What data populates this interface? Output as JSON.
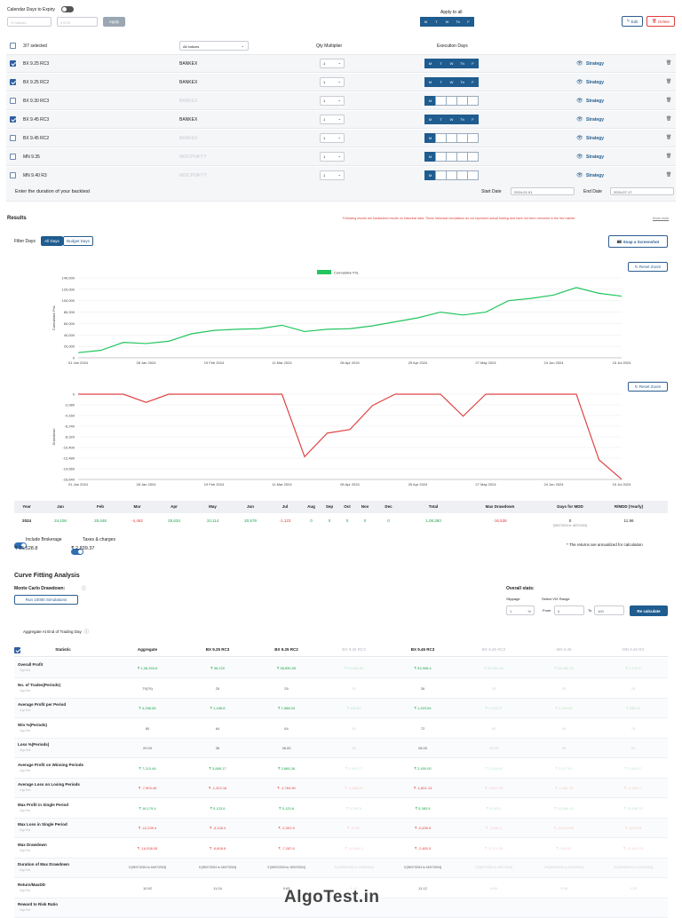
{
  "top": {
    "calendar_days_label": "Calendar Days to Expiry",
    "select1": "% Indices",
    "select2": "0 DTE",
    "apply_label": "Apply",
    "apply_to_all_label": "Apply to all",
    "days": [
      "M",
      "T",
      "W",
      "Th",
      "F"
    ],
    "edit_label": "Edit",
    "delete_label": "Delete"
  },
  "header_row": {
    "selected": "3/7 selected",
    "indices": "All Indices",
    "qty_mult": "Qty Multiplier",
    "exec_days": "Execution Days"
  },
  "legs": [
    {
      "name": "BX 9.25 RC3",
      "index": "BANKEX",
      "qty": "1",
      "checked": true,
      "active": true,
      "days": [
        1,
        1,
        1,
        1,
        1
      ]
    },
    {
      "name": "BX 9.25 RC2",
      "index": "BANKEX",
      "qty": "1",
      "checked": true,
      "active": true,
      "days": [
        1,
        1,
        1,
        1,
        1
      ]
    },
    {
      "name": "BX 9.30 RC3",
      "index": "BANKEX",
      "qty": "1",
      "checked": false,
      "active": false,
      "days": [
        1,
        0,
        0,
        0,
        0
      ]
    },
    {
      "name": "BX 9.45 RC3",
      "index": "BANKEX",
      "qty": "1",
      "checked": true,
      "active": true,
      "days": [
        1,
        1,
        1,
        1,
        1
      ]
    },
    {
      "name": "BX 9.45 RC2",
      "index": "BANKEX",
      "qty": "1",
      "checked": false,
      "active": false,
      "days": [
        1,
        0,
        0,
        0,
        0
      ]
    },
    {
      "name": "MN 9.35",
      "index": "MIDCPNIFTY",
      "qty": "1",
      "checked": false,
      "active": false,
      "days": [
        1,
        0,
        0,
        0,
        0
      ]
    },
    {
      "name": "MN 9.40 R3",
      "index": "MIDCPNIFTY",
      "qty": "1",
      "checked": false,
      "active": false,
      "days": [
        1,
        0,
        0,
        0,
        0
      ]
    }
  ],
  "strategy_label": "Strategy",
  "duration": {
    "label": "Enter the duration of your backtest",
    "start_label": "Start Date",
    "start": "2024-01-01",
    "end_label": "End Date",
    "end": "2024-07-17"
  },
  "results": {
    "title": "Results",
    "disclaimer": "Following results are backtested results on historical data. These historical simulations do not represent actual trading and have not been executed in the live market.",
    "know_more": "Know more",
    "filter_label": "Filter Days",
    "all_days": "All Days",
    "budget_days": "Budget Days",
    "snap_label": "Snap a Screenshot",
    "reset_zoom": "Reset Zoom"
  },
  "chart_data": [
    {
      "type": "line",
      "series": [
        {
          "name": "Cumulative PnL",
          "color": "#22c55e",
          "values": [
            9000,
            13000,
            27000,
            25000,
            29000,
            42000,
            48000,
            50000,
            51000,
            57000,
            46000,
            50000,
            51000,
            56000,
            63000,
            70000,
            80000,
            75000,
            80000,
            100000,
            104000,
            110000,
            123000,
            113000,
            108000
          ]
        }
      ],
      "ylabel": "Cumulative PnL",
      "ylim": [
        0,
        140000
      ],
      "yticks": [
        0,
        20000,
        40000,
        60000,
        80000,
        100000,
        120000,
        140000
      ],
      "xticks": [
        "01 Jan 2024",
        "28 Jan 2024",
        "19 Feb 2024",
        "11 Mar 2024",
        "06 Apr 2024",
        "29 Apr 2024",
        "27 May 2024",
        "24 Jun 2024",
        "15 Jul 2024"
      ]
    },
    {
      "type": "line",
      "series": [
        {
          "name": "Drawdown",
          "color": "#e04545",
          "values": [
            0,
            0,
            0,
            -1600,
            0,
            0,
            0,
            0,
            0,
            0,
            -12200,
            -7600,
            -6900,
            -2200,
            0,
            0,
            0,
            -4300,
            0,
            0,
            0,
            0,
            0,
            -12800,
            -16600
          ]
        }
      ],
      "ylabel": "Drawdown",
      "ylim": [
        -16640,
        0
      ],
      "yticks": [
        0,
        -2080,
        -4160,
        -6240,
        -8320,
        -10400,
        -12480,
        -14560,
        -16640
      ],
      "xticks": [
        "01 Jan 2024",
        "28 Jan 2024",
        "19 Feb 2024",
        "11 Mar 2024",
        "06 Apr 2024",
        "29 Apr 2024",
        "27 May 2024",
        "24 Jun 2024",
        "15 Jul 2024"
      ]
    }
  ],
  "summary": {
    "headers": [
      "Year",
      "Jan",
      "Feb",
      "Mar",
      "Apr",
      "May",
      "Jun",
      "Jul",
      "Aug",
      "Sep",
      "Oct",
      "Nov",
      "Dec",
      "Total",
      "Max Drawdown",
      "Days for MDD",
      "R/MDD (Yearly)"
    ],
    "row": [
      "2024",
      "24,106",
      "25,048",
      "-4,462",
      "25,634",
      "10,114",
      "20,579",
      "-1,123",
      "0",
      "0",
      "0",
      "0",
      "0",
      "1,08,393",
      "-16,538",
      "0",
      "11.96"
    ],
    "mdd_sub": "[09/07/2024 to 15/07/2024]"
  },
  "costs": {
    "brokerage_label": "Include Brokerage",
    "brokerage": "₹ 15,528.8",
    "taxes_label": "Taxes & charges",
    "taxes": "₹ 2,839.37",
    "note": "* The returns are annualized for calculation"
  },
  "curve": {
    "title": "Curve Fitting Analysis",
    "monte_label": "Monte Carlo Drawdown:",
    "run_label": "Run 10000 Simulations",
    "overall_label": "Overall stats:",
    "slippage_label": "Slippage",
    "slippage": "1",
    "vix_label": "Select VIX Range",
    "from_label": "From",
    "from": "0",
    "to_label": "To",
    "to": "100",
    "recalc_label": "Re calculate",
    "aggregate_label": "Aggregate At End of Trading Day"
  },
  "stats": {
    "columns": [
      "Statistic",
      "Aggregate",
      "BX 9.25 RC3",
      "BX 9.25 RC2",
      "BX 9.30 RC3",
      "BX 9.45 RC3",
      "BX 9.45 RC2",
      "MN 9.35",
      "MN 9.40 R3"
    ],
    "faded": [
      false,
      false,
      false,
      false,
      true,
      false,
      true,
      true,
      true
    ],
    "sub": "AlgoTest",
    "rows": [
      {
        "name": "Overall Profit",
        "cls": "green",
        "vals": [
          "₹ 1,08,393.6",
          "₹ 36,220",
          "₹ 38,850.55",
          "₹ 15,965.65",
          "₹ 33,908.4",
          "₹ 25,084.15",
          "₹ 28,966.35",
          "₹ 7,173.5"
        ]
      },
      {
        "name": "No. of Trades(Periods)",
        "cls": "",
        "vals": [
          "79(79)",
          "25",
          "25",
          "25",
          "26",
          "25",
          "25",
          "25"
        ]
      },
      {
        "name": "Average Profit per Period",
        "cls": "green",
        "vals": [
          "₹ 4,258.56",
          "₹ 1,448.8",
          "₹ 1,588.04",
          "₹ 638.63",
          "₹ 1,323.54",
          "₹ 1,003.37",
          "₹ 1,158.65",
          "₹ 286.94"
        ]
      },
      {
        "name": "Win %(Periods)",
        "cls": "",
        "vals": [
          "80",
          "64",
          "64",
          "64",
          "72",
          "80",
          "64",
          "76"
        ]
      },
      {
        "name": "Loss %(Periods)",
        "cls": "",
        "vals": [
          "20.00",
          "36",
          "36.00",
          "36",
          "28.00",
          "20.00",
          "36",
          "24"
        ]
      },
      {
        "name": "Average Profit on Winning Periods",
        "cls": "green",
        "vals": [
          "₹ 7,210.46",
          "₹ 3,889.17",
          "₹ 3,665.36",
          "₹ 1,924.77",
          "₹ 2,450.00",
          "₹ 2,426.86",
          "₹ 2,477.92",
          "₹ 1,364.37"
        ]
      },
      {
        "name": "Average Loss on Losing Periods",
        "cls": "red",
        "vals": [
          "₹ -7,903.49",
          "₹ -1,323.16",
          "₹ -1,764.90",
          "₹ -1,658.67",
          "₹ -1,601.13",
          "₹ -2,670.25",
          "₹ -1,181.79",
          "₹ -2,138.77"
        ]
      },
      {
        "name": "Max Profit in Single Period",
        "cls": "green",
        "vals": [
          "₹ 18,179.4",
          "₹ 5,123.6",
          "₹ 5,123.6",
          "₹ 5,759.5",
          "₹ 5,383.5",
          "₹ 8,283.5",
          "₹ 15,888.15",
          "₹ 10,638.15"
        ]
      },
      {
        "name": "Max Loss in Single Period",
        "cls": "red",
        "vals": [
          "₹ -12,239.4",
          "₹ -3,128.4",
          "₹ -2,391.5",
          "₹ -3,907",
          "₹ -2,435.5",
          "₹ -2,930.1",
          "₹ -10,083.95",
          "₹ -8,923.6"
        ]
      },
      {
        "name": "Max Drawdown",
        "cls": "red",
        "vals": [
          "₹ -16,538.35",
          "₹ -6,808.8",
          "₹ -7,287.6",
          "₹ -10,604.3",
          "₹ -2,480.5",
          "₹ -6,174.25",
          "₹ -16,031",
          "₹ -11,815.15"
        ]
      },
      {
        "name": "Duration of Max Drawdown",
        "cls": "",
        "vals": [
          "0 [09/07/2024 to 15/07/2024]",
          "0 [09/07/2024 to 15/07/2024]",
          "0 [09/07/2024 to 15/07/2024]",
          "21 [23/05/2024 to 12/06/2024]",
          "0 [09/07/2024 to 15/07/2024]",
          "0 [09/07/2024 to 15/07/2024]",
          "29 [15/05/2024 to 12/06/2024]",
          "29 [15/05/2024 to 12/06/2024]"
        ]
      },
      {
        "name": "Return/MaxDD",
        "cls": "",
        "vals": [
          "10.92",
          "11.04",
          "9.63",
          "1.11",
          "11.12",
          "6.65",
          "3.98",
          "1.25"
        ]
      },
      {
        "name": "Reward to Risk Ratio",
        "cls": "",
        "vals": [
          "",
          "",
          "",
          "",
          "",
          "",
          "",
          ""
        ]
      }
    ]
  },
  "watermark": "AlgoTest.in"
}
